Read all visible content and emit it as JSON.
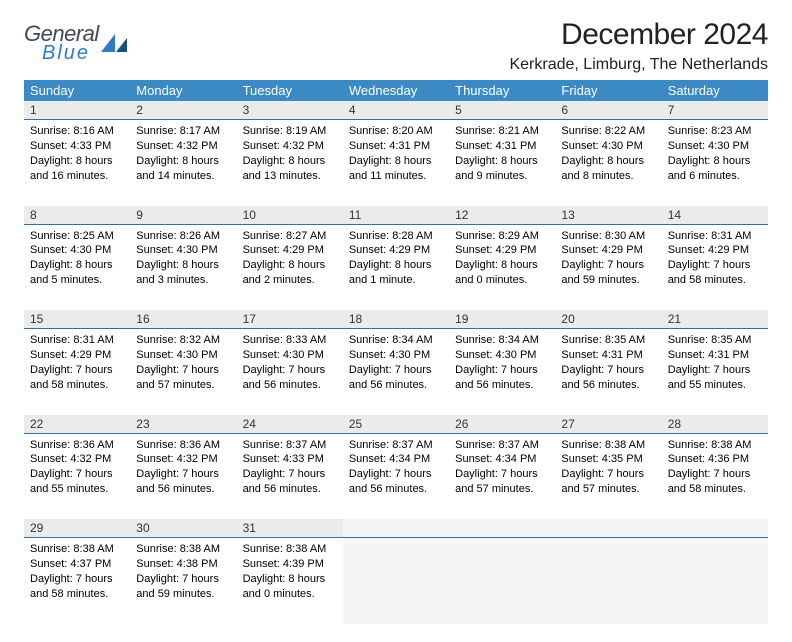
{
  "logo": {
    "general": "General",
    "blue": "Blue"
  },
  "title": "December 2024",
  "location": "Kerkrade, Limburg, The Netherlands",
  "colors": {
    "header_bg": "#3b8ac4",
    "daynum_bg": "#ebebeb",
    "daynum_border": "#2d6fa8",
    "logo_gray": "#404a56",
    "logo_blue": "#2f7bc4"
  },
  "weekdays": [
    "Sunday",
    "Monday",
    "Tuesday",
    "Wednesday",
    "Thursday",
    "Friday",
    "Saturday"
  ],
  "weeks": [
    [
      {
        "n": "1",
        "sr": "8:16 AM",
        "ss": "4:33 PM",
        "dl": "8 hours and 16 minutes."
      },
      {
        "n": "2",
        "sr": "8:17 AM",
        "ss": "4:32 PM",
        "dl": "8 hours and 14 minutes."
      },
      {
        "n": "3",
        "sr": "8:19 AM",
        "ss": "4:32 PM",
        "dl": "8 hours and 13 minutes."
      },
      {
        "n": "4",
        "sr": "8:20 AM",
        "ss": "4:31 PM",
        "dl": "8 hours and 11 minutes."
      },
      {
        "n": "5",
        "sr": "8:21 AM",
        "ss": "4:31 PM",
        "dl": "8 hours and 9 minutes."
      },
      {
        "n": "6",
        "sr": "8:22 AM",
        "ss": "4:30 PM",
        "dl": "8 hours and 8 minutes."
      },
      {
        "n": "7",
        "sr": "8:23 AM",
        "ss": "4:30 PM",
        "dl": "8 hours and 6 minutes."
      }
    ],
    [
      {
        "n": "8",
        "sr": "8:25 AM",
        "ss": "4:30 PM",
        "dl": "8 hours and 5 minutes."
      },
      {
        "n": "9",
        "sr": "8:26 AM",
        "ss": "4:30 PM",
        "dl": "8 hours and 3 minutes."
      },
      {
        "n": "10",
        "sr": "8:27 AM",
        "ss": "4:29 PM",
        "dl": "8 hours and 2 minutes."
      },
      {
        "n": "11",
        "sr": "8:28 AM",
        "ss": "4:29 PM",
        "dl": "8 hours and 1 minute."
      },
      {
        "n": "12",
        "sr": "8:29 AM",
        "ss": "4:29 PM",
        "dl": "8 hours and 0 minutes."
      },
      {
        "n": "13",
        "sr": "8:30 AM",
        "ss": "4:29 PM",
        "dl": "7 hours and 59 minutes."
      },
      {
        "n": "14",
        "sr": "8:31 AM",
        "ss": "4:29 PM",
        "dl": "7 hours and 58 minutes."
      }
    ],
    [
      {
        "n": "15",
        "sr": "8:31 AM",
        "ss": "4:29 PM",
        "dl": "7 hours and 58 minutes."
      },
      {
        "n": "16",
        "sr": "8:32 AM",
        "ss": "4:30 PM",
        "dl": "7 hours and 57 minutes."
      },
      {
        "n": "17",
        "sr": "8:33 AM",
        "ss": "4:30 PM",
        "dl": "7 hours and 56 minutes."
      },
      {
        "n": "18",
        "sr": "8:34 AM",
        "ss": "4:30 PM",
        "dl": "7 hours and 56 minutes."
      },
      {
        "n": "19",
        "sr": "8:34 AM",
        "ss": "4:30 PM",
        "dl": "7 hours and 56 minutes."
      },
      {
        "n": "20",
        "sr": "8:35 AM",
        "ss": "4:31 PM",
        "dl": "7 hours and 56 minutes."
      },
      {
        "n": "21",
        "sr": "8:35 AM",
        "ss": "4:31 PM",
        "dl": "7 hours and 55 minutes."
      }
    ],
    [
      {
        "n": "22",
        "sr": "8:36 AM",
        "ss": "4:32 PM",
        "dl": "7 hours and 55 minutes."
      },
      {
        "n": "23",
        "sr": "8:36 AM",
        "ss": "4:32 PM",
        "dl": "7 hours and 56 minutes."
      },
      {
        "n": "24",
        "sr": "8:37 AM",
        "ss": "4:33 PM",
        "dl": "7 hours and 56 minutes."
      },
      {
        "n": "25",
        "sr": "8:37 AM",
        "ss": "4:34 PM",
        "dl": "7 hours and 56 minutes."
      },
      {
        "n": "26",
        "sr": "8:37 AM",
        "ss": "4:34 PM",
        "dl": "7 hours and 57 minutes."
      },
      {
        "n": "27",
        "sr": "8:38 AM",
        "ss": "4:35 PM",
        "dl": "7 hours and 57 minutes."
      },
      {
        "n": "28",
        "sr": "8:38 AM",
        "ss": "4:36 PM",
        "dl": "7 hours and 58 minutes."
      }
    ],
    [
      {
        "n": "29",
        "sr": "8:38 AM",
        "ss": "4:37 PM",
        "dl": "7 hours and 58 minutes."
      },
      {
        "n": "30",
        "sr": "8:38 AM",
        "ss": "4:38 PM",
        "dl": "7 hours and 59 minutes."
      },
      {
        "n": "31",
        "sr": "8:38 AM",
        "ss": "4:39 PM",
        "dl": "8 hours and 0 minutes."
      },
      null,
      null,
      null,
      null
    ]
  ],
  "labels": {
    "sunrise": "Sunrise:",
    "sunset": "Sunset:",
    "daylight": "Daylight:"
  }
}
